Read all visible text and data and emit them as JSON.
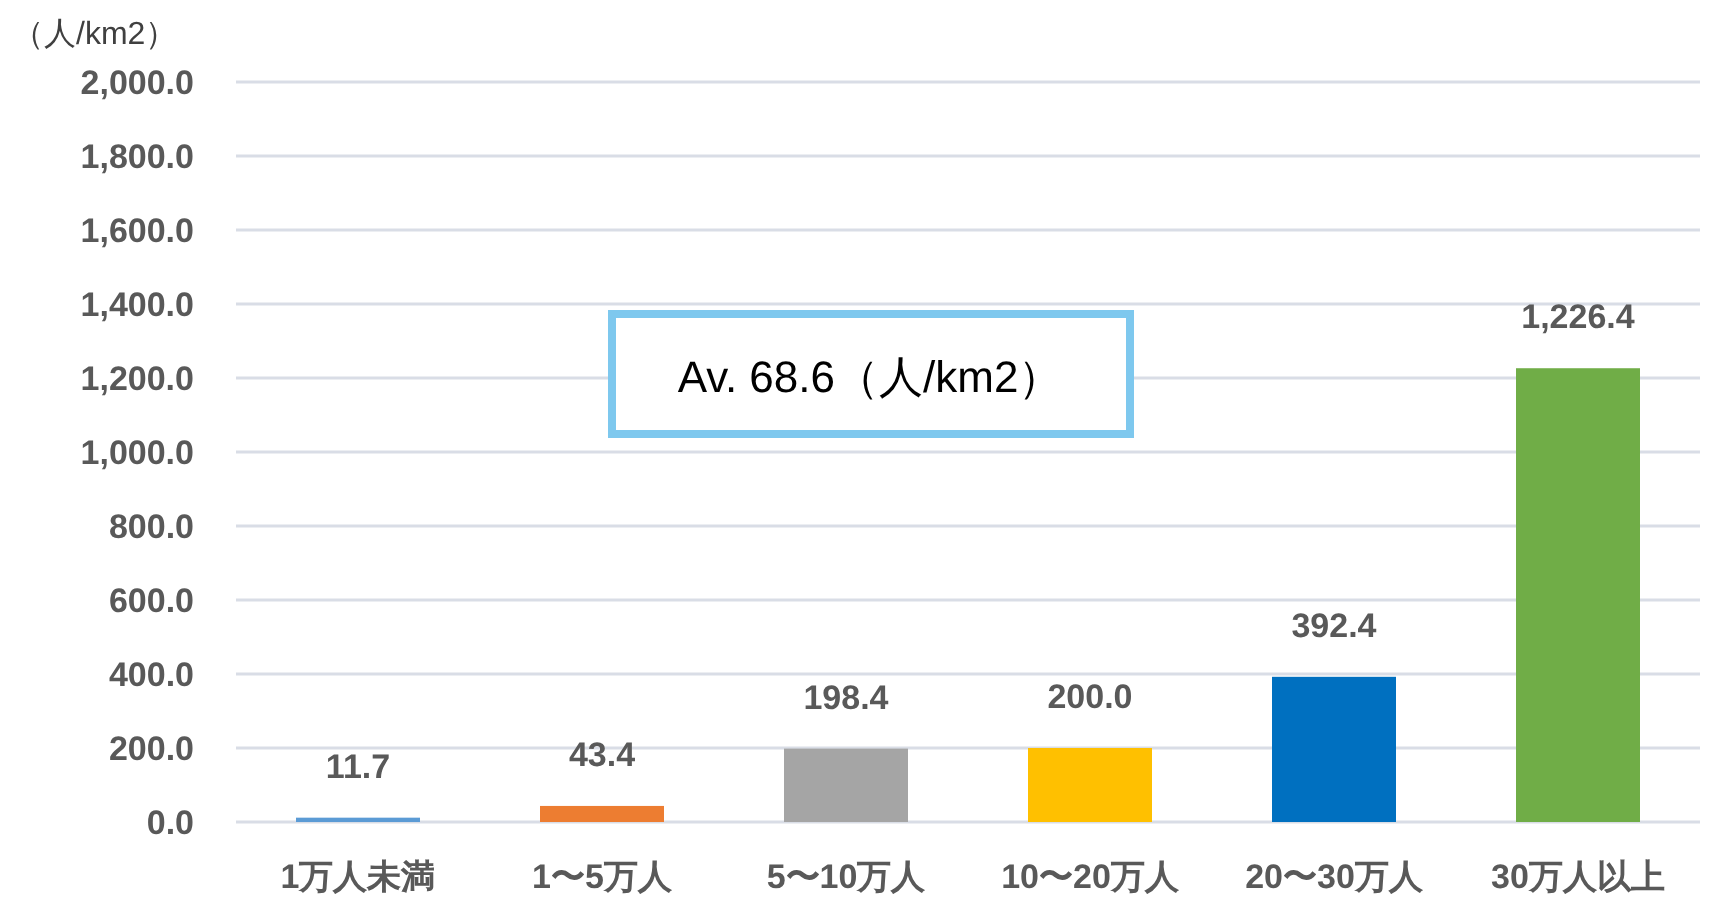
{
  "chart_data": {
    "type": "bar",
    "ylabel": "（人/km2）",
    "categories": [
      "1万人未満",
      "1〜5万人",
      "5〜10万人",
      "10〜20万人",
      "20〜30万人",
      "30万人以上"
    ],
    "values": [
      11.7,
      43.4,
      198.4,
      200.0,
      392.4,
      1226.4
    ],
    "colors": [
      "#5b9bd5",
      "#ed7d31",
      "#a5a5a5",
      "#ffc000",
      "#0070c0",
      "#70ad47"
    ],
    "value_labels": [
      "11.7",
      "43.4",
      "198.4",
      "200.0",
      "392.4",
      "1,226.4"
    ],
    "ylim": [
      0,
      2000
    ],
    "yticks": [
      {
        "value": 0,
        "label": "0.0"
      },
      {
        "value": 200,
        "label": "200.0"
      },
      {
        "value": 400,
        "label": "400.0"
      },
      {
        "value": 600,
        "label": "600.0"
      },
      {
        "value": 800,
        "label": "800.0"
      },
      {
        "value": 1000,
        "label": "1,000.0"
      },
      {
        "value": 1200,
        "label": "1,200.0"
      },
      {
        "value": 1400,
        "label": "1,400.0"
      },
      {
        "value": 1600,
        "label": "1,600.0"
      },
      {
        "value": 1800,
        "label": "1,800.0"
      },
      {
        "value": 2000,
        "label": "2,000.0"
      }
    ],
    "grid": "y",
    "annotations": [
      "Av. 68.6（人/km2）"
    ]
  }
}
